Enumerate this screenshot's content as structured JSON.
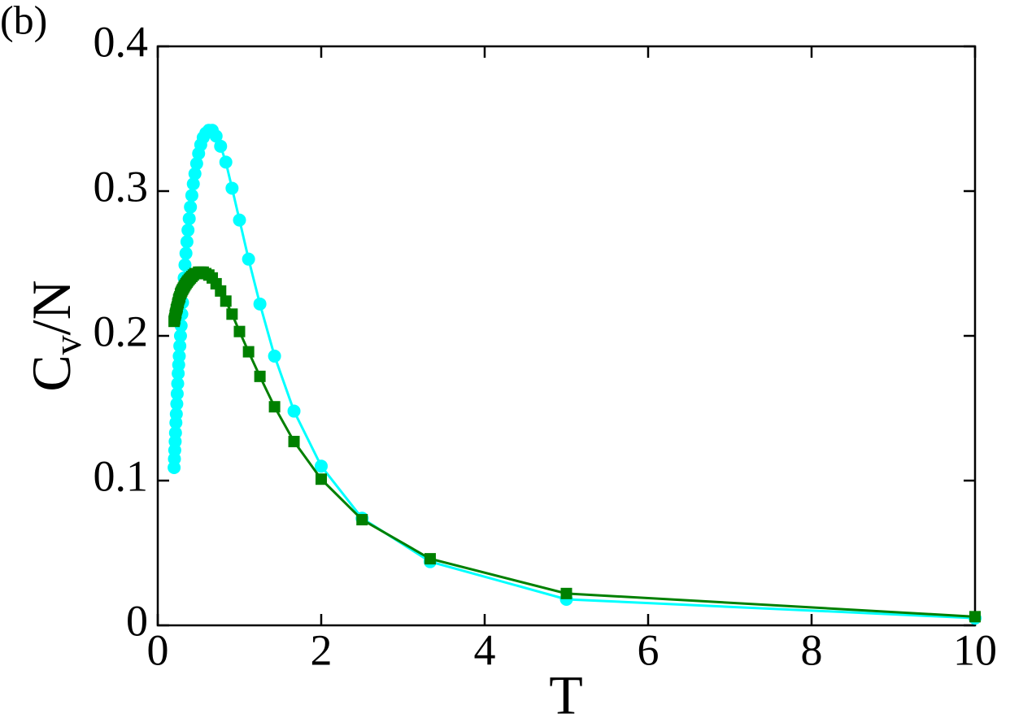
{
  "chart_data": {
    "type": "line",
    "panel_label": "(b)",
    "xlabel": "T",
    "ylabel": {
      "text": "C",
      "subscript": "v",
      "suffix": "/N"
    },
    "x": [
      10,
      5,
      3.333,
      2.5,
      2,
      1.667,
      1.429,
      1.25,
      1.111,
      1,
      0.909,
      0.833,
      0.769,
      0.714,
      0.667,
      0.625,
      0.588,
      0.556,
      0.526,
      0.5,
      0.476,
      0.455,
      0.435,
      0.417,
      0.4,
      0.385,
      0.37,
      0.357,
      0.345,
      0.333,
      0.323,
      0.313,
      0.303,
      0.294,
      0.286,
      0.278,
      0.27,
      0.263,
      0.256,
      0.25,
      0.244,
      0.238,
      0.233,
      0.227,
      0.222,
      0.217,
      0.213,
      0.208,
      0.204,
      0.2
    ],
    "series": [
      {
        "color": "#00ffff",
        "marker": "circle",
        "values": [
          0.005,
          0.018,
          0.044,
          0.074,
          0.11,
          0.148,
          0.186,
          0.222,
          0.253,
          0.28,
          0.302,
          0.32,
          0.331,
          0.338,
          0.342,
          0.342,
          0.34,
          0.337,
          0.332,
          0.326,
          0.319,
          0.312,
          0.305,
          0.297,
          0.289,
          0.281,
          0.273,
          0.265,
          0.257,
          0.249,
          0.24,
          0.232,
          0.223,
          0.215,
          0.207,
          0.2,
          0.193,
          0.186,
          0.18,
          0.174,
          0.167,
          0.16,
          0.153,
          0.146,
          0.14,
          0.133,
          0.127,
          0.121,
          0.115,
          0.109
        ]
      },
      {
        "color": "#008000",
        "marker": "square",
        "values": [
          0.006,
          0.022,
          0.046,
          0.073,
          0.101,
          0.127,
          0.151,
          0.172,
          0.189,
          0.203,
          0.215,
          0.224,
          0.231,
          0.236,
          0.24,
          0.242,
          0.243,
          0.244,
          0.244,
          0.244,
          0.243,
          0.243,
          0.242,
          0.241,
          0.24,
          0.239,
          0.238,
          0.237,
          0.236,
          0.235,
          0.234,
          0.233,
          0.232,
          0.231,
          0.23,
          0.229,
          0.227,
          0.226,
          0.225,
          0.223,
          0.222,
          0.22,
          0.219,
          0.218,
          0.216,
          0.215,
          0.214,
          0.212,
          0.211,
          0.21
        ]
      }
    ],
    "xlim": [
      0,
      10
    ],
    "xticks": [
      0,
      2,
      4,
      6,
      8,
      10
    ],
    "ylim": [
      0,
      0.4
    ],
    "yticks": [
      0,
      0.1,
      0.2,
      0.3,
      0.4
    ]
  }
}
